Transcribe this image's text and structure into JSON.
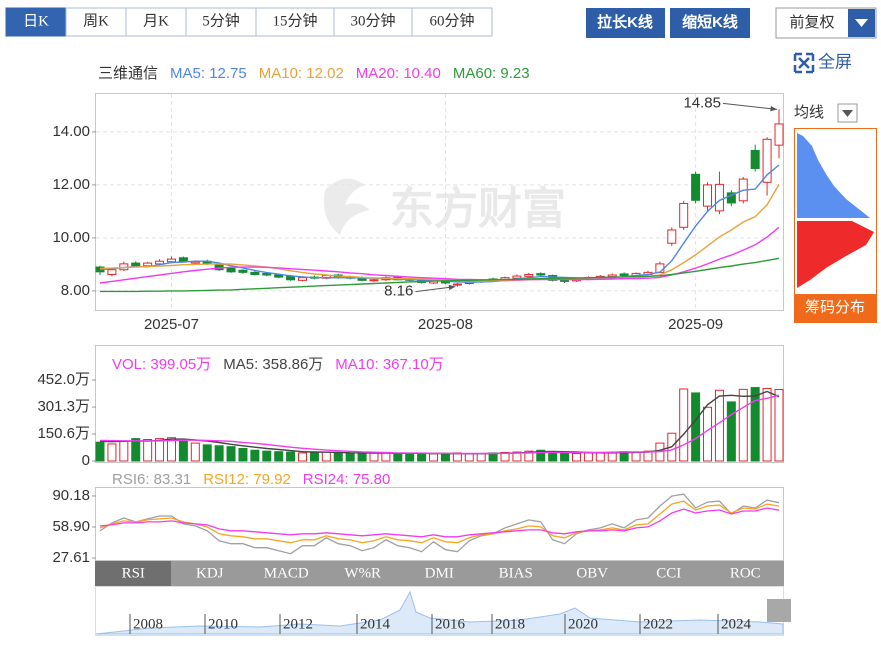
{
  "toolbar": {
    "tabs": [
      "日K",
      "周K",
      "月K",
      "5分钟",
      "15分钟",
      "30分钟",
      "60分钟"
    ],
    "buttons": [
      "拉长K线",
      "缩短K线"
    ],
    "adjust": "前复权",
    "fullscreen": "全屏"
  },
  "side": {
    "ma_selector": "均线",
    "chip_distribution": "筹码分布"
  },
  "watermark": "东方财富",
  "indicator_tabs": [
    "RSI",
    "KDJ",
    "MACD",
    "W%R",
    "DMI",
    "BIAS",
    "OBV",
    "CCI",
    "ROC"
  ],
  "timeline_years": [
    "2008",
    "2010",
    "2012",
    "2014",
    "2016",
    "2018",
    "2020",
    "2022",
    "2024"
  ],
  "chart_data": [
    {
      "type": "candlestick",
      "title": "三维通信",
      "categories": [
        null,
        null,
        null,
        null,
        null,
        null,
        "2025-07",
        null,
        null,
        null,
        null,
        null,
        null,
        null,
        null,
        null,
        null,
        null,
        null,
        null,
        null,
        null,
        null,
        null,
        null,
        null,
        null,
        null,
        null,
        "2025-08",
        null,
        null,
        null,
        null,
        null,
        null,
        null,
        null,
        null,
        null,
        null,
        null,
        null,
        null,
        null,
        null,
        null,
        null,
        null,
        null,
        "2025-09",
        null,
        null,
        null,
        null,
        null,
        null,
        null
      ],
      "open": [
        8.9,
        8.62,
        8.8,
        9.05,
        8.95,
        9.02,
        9.1,
        9.25,
        9.05,
        9.12,
        9.0,
        8.85,
        8.78,
        8.7,
        8.66,
        8.6,
        8.55,
        8.4,
        8.52,
        8.48,
        8.6,
        8.52,
        8.5,
        8.38,
        8.42,
        8.52,
        8.45,
        8.42,
        8.3,
        8.38,
        8.22,
        8.28,
        8.34,
        8.45,
        8.4,
        8.48,
        8.55,
        8.65,
        8.58,
        8.44,
        8.38,
        8.44,
        8.5,
        8.54,
        8.64,
        8.56,
        8.62,
        8.7,
        9.8,
        10.4,
        12.4,
        11.2,
        11.02,
        11.7,
        11.4,
        13.3,
        12.1,
        13.5
      ],
      "high": [
        8.95,
        8.85,
        9.1,
        9.12,
        9.1,
        9.2,
        9.3,
        9.3,
        9.15,
        9.18,
        9.05,
        8.9,
        8.82,
        8.75,
        8.7,
        8.65,
        8.6,
        8.55,
        8.58,
        8.62,
        8.65,
        8.58,
        8.55,
        8.48,
        8.55,
        8.58,
        8.5,
        8.46,
        8.45,
        8.42,
        8.3,
        8.4,
        8.45,
        8.5,
        8.54,
        8.62,
        8.68,
        8.7,
        8.62,
        8.48,
        8.5,
        8.55,
        8.6,
        8.66,
        8.7,
        8.7,
        8.76,
        9.1,
        10.4,
        11.4,
        12.5,
        12.1,
        12.5,
        11.8,
        12.3,
        13.52,
        13.8,
        14.85
      ],
      "low": [
        8.6,
        8.55,
        8.75,
        8.88,
        8.9,
        8.96,
        9.05,
        9.08,
        9.0,
        8.98,
        8.75,
        8.68,
        8.64,
        8.58,
        8.55,
        8.48,
        8.38,
        8.36,
        8.44,
        8.44,
        8.46,
        8.44,
        8.36,
        8.34,
        8.38,
        8.4,
        8.36,
        8.28,
        8.26,
        8.26,
        8.16,
        8.24,
        8.3,
        8.38,
        8.36,
        8.44,
        8.5,
        8.56,
        8.36,
        8.3,
        8.34,
        8.4,
        8.46,
        8.5,
        8.54,
        8.52,
        8.58,
        8.66,
        9.7,
        10.3,
        11.3,
        11.0,
        10.9,
        11.2,
        11.3,
        12.5,
        11.6,
        13.0
      ],
      "close": [
        8.72,
        8.8,
        9.02,
        8.95,
        9.05,
        9.12,
        9.2,
        9.12,
        9.1,
        9.02,
        8.8,
        8.72,
        8.7,
        8.62,
        8.6,
        8.52,
        8.42,
        8.5,
        8.48,
        8.58,
        8.5,
        8.48,
        8.4,
        8.42,
        8.5,
        8.42,
        8.4,
        8.32,
        8.4,
        8.3,
        8.26,
        8.36,
        8.4,
        8.42,
        8.5,
        8.56,
        8.62,
        8.6,
        8.4,
        8.36,
        8.46,
        8.5,
        8.55,
        8.6,
        8.58,
        8.66,
        8.7,
        9.02,
        10.3,
        11.3,
        11.42,
        12.0,
        12.02,
        11.32,
        12.22,
        12.62,
        13.72,
        14.3
      ],
      "up_color": "#e4262b",
      "down_color": "#138a2e",
      "series": [
        {
          "name": "MA5",
          "label": "MA5: 12.75",
          "color": "#4f86e8",
          "values": [
            8.8,
            8.84,
            8.88,
            8.92,
            8.91,
            8.99,
            9.07,
            9.09,
            9.12,
            9.12,
            9.05,
            8.95,
            8.87,
            8.77,
            8.69,
            8.63,
            8.57,
            8.53,
            8.5,
            8.5,
            8.5,
            8.5,
            8.49,
            8.48,
            8.46,
            8.44,
            8.43,
            8.41,
            8.41,
            8.37,
            8.34,
            8.33,
            8.34,
            8.35,
            8.39,
            8.45,
            8.5,
            8.54,
            8.52,
            8.51,
            8.49,
            8.46,
            8.47,
            8.49,
            8.54,
            8.58,
            8.62,
            8.71,
            9.14,
            9.8,
            10.45,
            11.0,
            11.41,
            11.61,
            11.8,
            11.84,
            12.38,
            12.75
          ]
        },
        {
          "name": "MA10",
          "label": "MA10: 12.02",
          "color": "#e8a33a",
          "values": [
            8.85,
            8.86,
            8.88,
            8.9,
            8.92,
            8.94,
            8.96,
            8.99,
            9.0,
            9.01,
            9.02,
            9.01,
            8.98,
            8.94,
            8.9,
            8.84,
            8.76,
            8.7,
            8.64,
            8.6,
            8.56,
            8.54,
            8.51,
            8.49,
            8.48,
            8.47,
            8.46,
            8.45,
            8.43,
            8.41,
            8.39,
            8.38,
            8.37,
            8.38,
            8.38,
            8.4,
            8.42,
            8.44,
            8.44,
            8.45,
            8.47,
            8.48,
            8.5,
            8.51,
            8.52,
            8.53,
            8.54,
            8.6,
            8.8,
            9.07,
            9.36,
            9.7,
            10.04,
            10.3,
            10.6,
            10.8,
            11.25,
            12.02
          ]
        },
        {
          "name": "MA20",
          "label": "MA20: 10.40",
          "color": "#f03cf0",
          "values": [
            8.3,
            8.36,
            8.42,
            8.48,
            8.54,
            8.6,
            8.66,
            8.72,
            8.77,
            8.82,
            8.86,
            8.89,
            8.9,
            8.9,
            8.89,
            8.87,
            8.84,
            8.81,
            8.78,
            8.75,
            8.72,
            8.68,
            8.65,
            8.61,
            8.58,
            8.55,
            8.52,
            8.5,
            8.48,
            8.46,
            8.44,
            8.43,
            8.42,
            8.42,
            8.42,
            8.42,
            8.43,
            8.43,
            8.43,
            8.43,
            8.43,
            8.43,
            8.44,
            8.45,
            8.46,
            8.47,
            8.48,
            8.51,
            8.6,
            8.72,
            8.86,
            9.02,
            9.2,
            9.35,
            9.54,
            9.74,
            10.03,
            10.4
          ]
        },
        {
          "name": "MA60",
          "label": "MA60: 9.23",
          "color": "#2e9b3a",
          "values": [
            7.98,
            7.98,
            7.98,
            7.98,
            7.99,
            7.99,
            8.0,
            8.0,
            8.01,
            8.02,
            8.03,
            8.04,
            8.06,
            8.08,
            8.1,
            8.12,
            8.14,
            8.16,
            8.18,
            8.2,
            8.22,
            8.24,
            8.26,
            8.28,
            8.3,
            8.32,
            8.34,
            8.36,
            8.37,
            8.38,
            8.39,
            8.4,
            8.41,
            8.42,
            8.43,
            8.44,
            8.45,
            8.46,
            8.47,
            8.48,
            8.49,
            8.5,
            8.51,
            8.52,
            8.53,
            8.54,
            8.55,
            8.57,
            8.62,
            8.68,
            8.74,
            8.81,
            8.88,
            8.94,
            9.01,
            9.07,
            9.15,
            9.23
          ]
        }
      ],
      "annotations": [
        {
          "value": 14.85,
          "label": "14.85"
        },
        {
          "value": 8.16,
          "label": "8.16"
        }
      ],
      "ylim": [
        7.28,
        15.43
      ],
      "yticks": [
        {
          "value": 8,
          "label": "8.00"
        },
        {
          "value": 10,
          "label": "10.00"
        },
        {
          "value": 12,
          "label": "12.00"
        },
        {
          "value": 14,
          "label": "14.00"
        }
      ],
      "grid": true
    },
    {
      "type": "bar",
      "series": [
        {
          "name": "VOL",
          "label": "VOL: 399.05万",
          "color": "#f03cf0",
          "values": [
            105,
            95,
            110,
            125,
            120,
            125,
            130,
            110,
            100,
            90,
            85,
            80,
            70,
            60,
            55,
            52,
            50,
            45,
            48,
            50,
            45,
            42,
            40,
            45,
            48,
            42,
            40,
            38,
            40,
            42,
            45,
            40,
            42,
            45,
            48,
            50,
            55,
            60,
            50,
            45,
            42,
            45,
            48,
            50,
            52,
            48,
            55,
            100,
            155,
            402,
            380,
            300,
            395,
            330,
            400,
            410,
            405,
            399.05
          ]
        },
        {
          "name": "MA5",
          "label": "MA5: 358.86万",
          "color": "#444444",
          "values": [
            110,
            108,
            110,
            112,
            111,
            115,
            122,
            122,
            117,
            111,
            103,
            93,
            85,
            77,
            70,
            64,
            58,
            52,
            50,
            49,
            48,
            46,
            45,
            44,
            44,
            43,
            43,
            43,
            42,
            42,
            41,
            41,
            41,
            42,
            44,
            45,
            48,
            52,
            53,
            52,
            50,
            48,
            46,
            46,
            47,
            48,
            50,
            60,
            80,
            150,
            228,
            314,
            363,
            367,
            361,
            363,
            388,
            358.86
          ]
        },
        {
          "name": "MA10",
          "label": "MA10: 367.10万",
          "color": "#f03cf0",
          "values": [
            115,
            114,
            113,
            113,
            112,
            112,
            114,
            116,
            116,
            115,
            113,
            110,
            104,
            99,
            92,
            85,
            77,
            71,
            66,
            61,
            57,
            54,
            51,
            49,
            47,
            45,
            44,
            44,
            43,
            43,
            42,
            42,
            42,
            42,
            43,
            44,
            45,
            47,
            48,
            48,
            48,
            48,
            48,
            49,
            50,
            50,
            50,
            53,
            62,
            90,
            125,
            171,
            213,
            259,
            300,
            338,
            350,
            367.1
          ]
        }
      ],
      "up_color": "#e4262b",
      "down_color": "#138a2e",
      "ylim": [
        0,
        642
      ],
      "yticks": [
        0,
        {
          "value": 150.6,
          "label": "150.6万"
        },
        {
          "value": 301.3,
          "label": "301.3万"
        },
        {
          "value": 452.0,
          "label": "452.0万"
        }
      ],
      "grid": false
    },
    {
      "type": "line",
      "series": [
        {
          "name": "RSI6",
          "label": "RSI6: 83.31",
          "color": "#a0a0a0",
          "values": [
            55,
            63,
            68,
            64,
            67,
            70,
            70,
            62,
            60,
            55,
            45,
            42,
            42,
            38,
            38,
            35,
            32,
            40,
            40,
            48,
            42,
            40,
            35,
            38,
            46,
            40,
            38,
            34,
            44,
            36,
            34,
            45,
            50,
            52,
            58,
            62,
            66,
            64,
            46,
            42,
            52,
            56,
            58,
            62,
            58,
            66,
            68,
            80,
            90,
            92,
            78,
            84,
            85,
            72,
            80,
            78,
            86,
            83.31
          ]
        },
        {
          "name": "RSI12",
          "label": "RSI12: 79.92",
          "color": "#f5a623",
          "values": [
            58,
            62,
            65,
            64,
            66,
            67,
            68,
            64,
            62,
            59,
            52,
            50,
            49,
            47,
            47,
            45,
            43,
            46,
            46,
            50,
            47,
            46,
            43,
            45,
            49,
            46,
            45,
            43,
            48,
            44,
            43,
            48,
            51,
            52,
            55,
            57,
            60,
            59,
            50,
            48,
            53,
            55,
            56,
            58,
            56,
            61,
            62,
            72,
            82,
            85,
            76,
            80,
            81,
            73,
            78,
            77,
            82,
            79.92
          ]
        },
        {
          "name": "RSI24",
          "label": "RSI24: 75.80",
          "color": "#f03cf0",
          "values": [
            60,
            61,
            63,
            63,
            64,
            64,
            65,
            63,
            62,
            61,
            57,
            55,
            55,
            54,
            53,
            52,
            51,
            52,
            52,
            53,
            52,
            51,
            50,
            51,
            52,
            51,
            50,
            49,
            51,
            49,
            49,
            51,
            52,
            53,
            54,
            55,
            56,
            56,
            53,
            52,
            54,
            55,
            55,
            56,
            55,
            58,
            59,
            65,
            73,
            77,
            73,
            75,
            76,
            72,
            75,
            75,
            78,
            75.8
          ]
        }
      ],
      "ylim": [
        25.6,
        98.2
      ],
      "yticks": [
        27.61,
        {
          "value": 58.9,
          "label": "58.90"
        },
        90.18
      ],
      "grid": false
    }
  ]
}
